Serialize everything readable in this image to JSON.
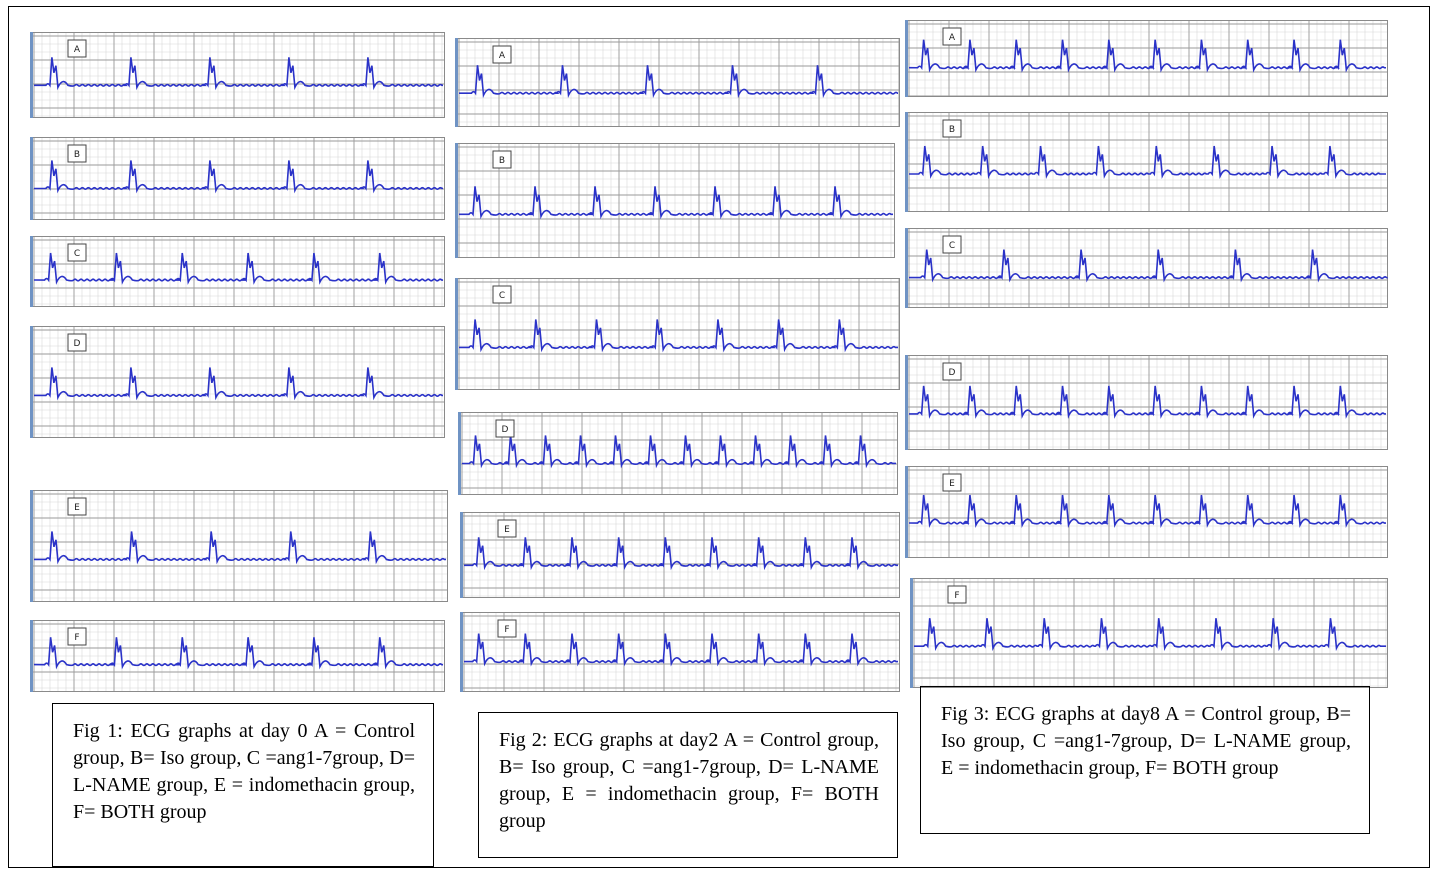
{
  "figures": [
    {
      "panels": [
        "A",
        "B",
        "C",
        "D",
        "E",
        "F"
      ],
      "caption": "Fig 1: ECG graphs at day 0 A = Control group, B= Iso group, C =ang1-7group, D= L-NAME group, E = indomethacin group, F= BOTH group"
    },
    {
      "panels": [
        "A",
        "B",
        "C",
        "D",
        "E",
        "F"
      ],
      "caption": "Fig 2: ECG graphs at day2 A = Control group, B= Iso group, C =ang1-7group, D= L-NAME group, E = indomethacin group, F= BOTH group"
    },
    {
      "panels": [
        "A",
        "B",
        "C",
        "D",
        "E",
        "F"
      ],
      "caption": "Fig 3: ECG graphs at day8 A = Control group, B= Iso group, C =ang1-7group, D= L-NAME group, E = indomethacin group, F= BOTH group"
    }
  ]
}
